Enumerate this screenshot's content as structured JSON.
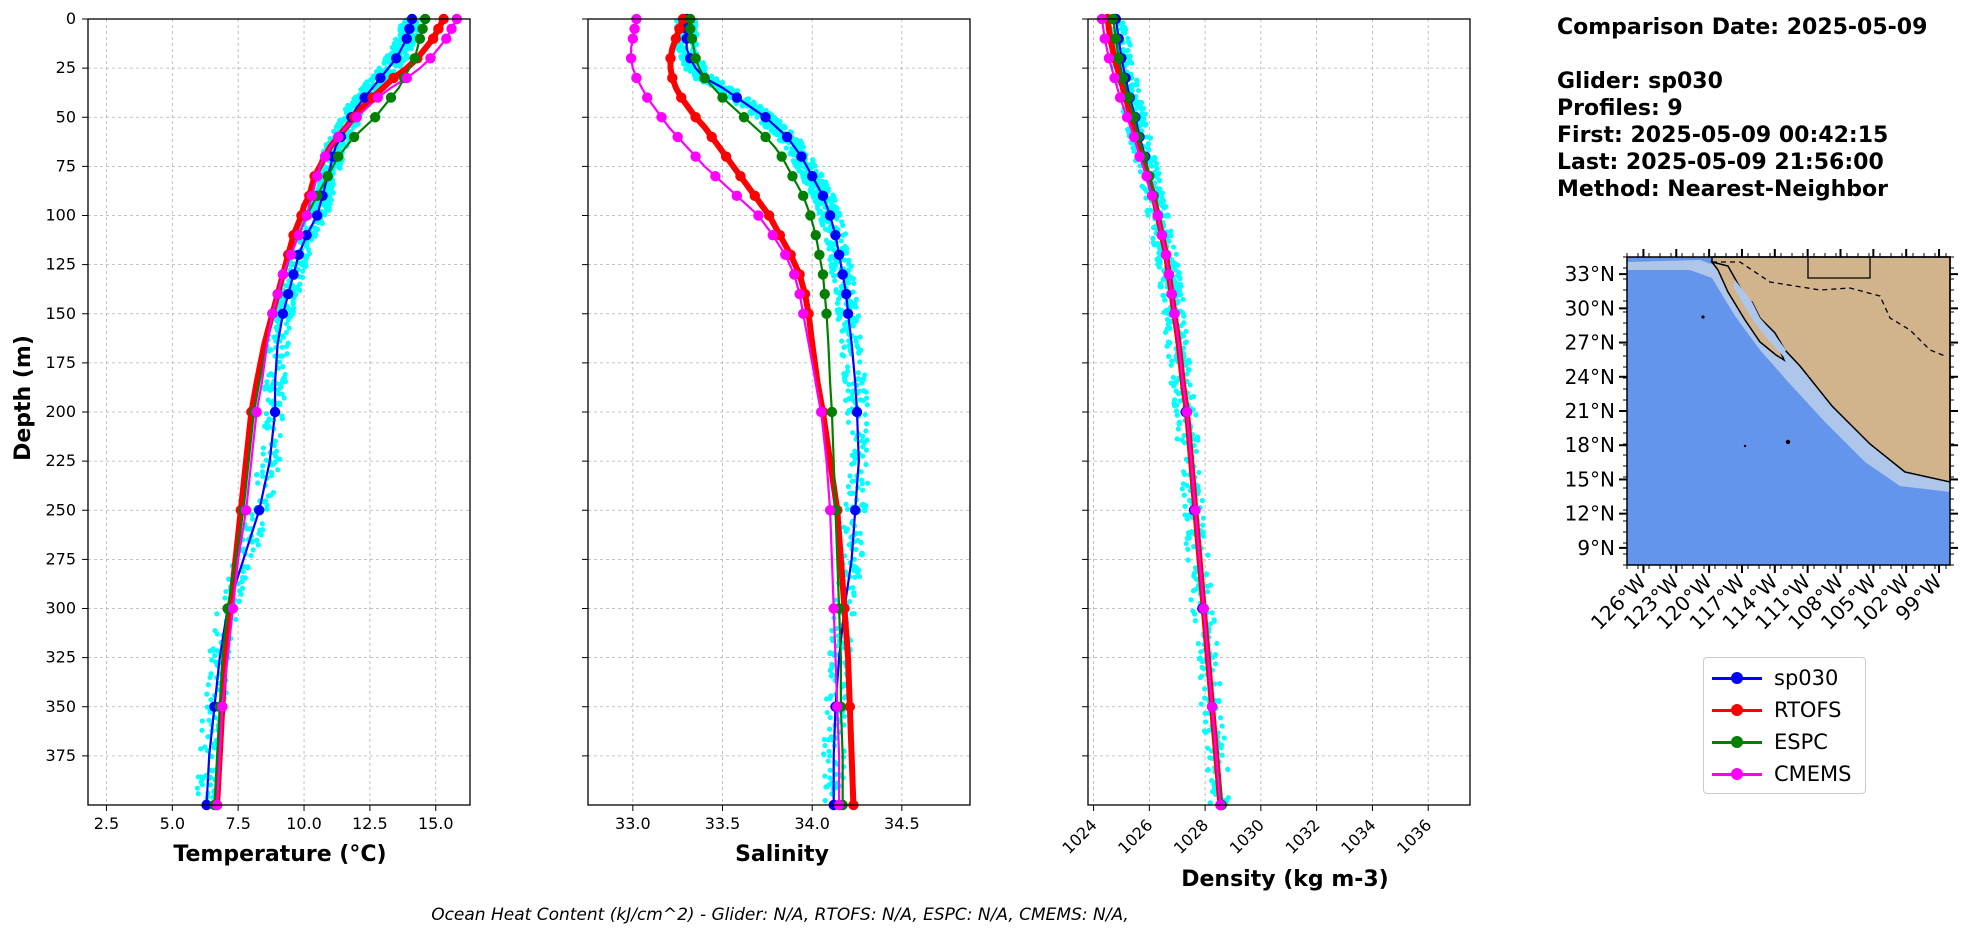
{
  "info": {
    "comparison_date": "Comparison Date: 2025-05-09",
    "glider": "Glider: sp030",
    "profiles": "Profiles: 9",
    "first": "First: 2025-05-09 00:42:15",
    "last": "Last: 2025-05-09 21:56:00",
    "method": "Method: Nearest-Neighbor"
  },
  "footer": "Ocean Heat Content (kJ/cm^2) - Glider: N/A,  RTOFS: N/A,  ESPC: N/A,  CMEMS: N/A,",
  "legend": [
    {
      "label": "sp030",
      "color": "#0000ff"
    },
    {
      "label": "RTOFS",
      "color": "#ff0000"
    },
    {
      "label": "ESPC",
      "color": "#008000"
    },
    {
      "label": "CMEMS",
      "color": "#ff00ff"
    }
  ],
  "colors": {
    "glider_scatter": "#00ffff",
    "ocean": "#6495ed",
    "shelf": "#aec6ea",
    "land": "#d2b48c"
  },
  "chart_data": [
    {
      "type": "line",
      "xlabel": "Temperature (°C)",
      "ylabel": "Depth (m)",
      "xlim": [
        1.8,
        16.3
      ],
      "ylim": [
        400,
        0
      ],
      "xticks": [
        "2.5",
        "5.0",
        "7.5",
        "10.0",
        "12.5",
        "15.0"
      ],
      "yticks": [
        "0",
        "25",
        "50",
        "75",
        "100",
        "125",
        "150",
        "175",
        "200",
        "225",
        "250",
        "275",
        "300",
        "325",
        "350",
        "375"
      ],
      "grid": true,
      "depth": [
        0,
        5,
        10,
        15,
        20,
        25,
        30,
        35,
        40,
        45,
        50,
        55,
        60,
        65,
        70,
        75,
        80,
        85,
        90,
        95,
        100,
        110,
        120,
        130,
        140,
        150,
        165,
        185,
        200,
        225,
        250,
        275,
        300,
        325,
        350,
        375,
        400
      ],
      "series": [
        {
          "name": "sp030",
          "values": [
            14.1,
            14.0,
            13.9,
            13.7,
            13.5,
            13.2,
            12.9,
            12.6,
            12.3,
            12.0,
            11.8,
            11.6,
            11.4,
            11.2,
            11.1,
            11.0,
            10.9,
            10.8,
            10.7,
            10.6,
            10.5,
            10.1,
            9.8,
            9.6,
            9.4,
            9.2,
            9.0,
            8.9,
            8.9,
            8.7,
            8.3,
            7.7,
            7.1,
            6.8,
            6.6,
            6.4,
            6.3
          ]
        },
        {
          "name": "RTOFS",
          "values": [
            15.3,
            15.1,
            14.9,
            14.6,
            14.3,
            13.9,
            13.4,
            13.0,
            12.6,
            12.2,
            11.9,
            11.6,
            11.3,
            11.0,
            10.8,
            10.6,
            10.4,
            10.3,
            10.2,
            10.0,
            9.9,
            9.6,
            9.4,
            9.2,
            9.0,
            8.8,
            8.5,
            8.2,
            8.0,
            7.8,
            7.6,
            7.4,
            7.2,
            7.0,
            6.9,
            6.8,
            6.7
          ]
        },
        {
          "name": "ESPC",
          "values": [
            14.6,
            14.5,
            14.4,
            14.3,
            14.2,
            14.0,
            13.8,
            13.6,
            13.3,
            13.0,
            12.7,
            12.3,
            11.9,
            11.6,
            11.3,
            11.1,
            10.9,
            10.7,
            10.5,
            10.3,
            10.1,
            9.8,
            9.5,
            9.2,
            9.0,
            8.8,
            8.6,
            8.3,
            8.1,
            7.9,
            7.7,
            7.4,
            7.1,
            6.9,
            6.8,
            6.7,
            6.6
          ]
        },
        {
          "name": "CMEMS",
          "values": [
            15.8,
            15.6,
            15.4,
            15.1,
            14.8,
            14.4,
            13.9,
            13.3,
            12.8,
            12.4,
            12.0,
            11.6,
            11.3,
            11.0,
            10.8,
            10.6,
            10.5,
            10.4,
            10.3,
            10.2,
            10.1,
            9.8,
            9.5,
            9.2,
            9.0,
            8.8,
            8.6,
            8.4,
            8.2,
            8.0,
            7.8,
            7.5,
            7.3,
            7.1,
            6.9,
            6.8,
            6.7
          ]
        }
      ]
    },
    {
      "type": "line",
      "xlabel": "Salinity",
      "xlim": [
        32.75,
        34.88
      ],
      "ylim": [
        400,
        0
      ],
      "xticks": [
        "33.0",
        "33.5",
        "34.0",
        "34.5"
      ],
      "grid": true,
      "depth": [
        0,
        5,
        10,
        15,
        20,
        25,
        30,
        35,
        40,
        45,
        50,
        55,
        60,
        65,
        70,
        75,
        80,
        85,
        90,
        95,
        100,
        110,
        120,
        130,
        140,
        150,
        165,
        185,
        200,
        225,
        250,
        275,
        300,
        325,
        350,
        375,
        400
      ],
      "series": [
        {
          "name": "sp030",
          "values": [
            33.3,
            33.3,
            33.3,
            33.3,
            33.32,
            33.35,
            33.4,
            33.5,
            33.58,
            33.66,
            33.74,
            33.8,
            33.86,
            33.9,
            33.94,
            33.97,
            34.0,
            34.03,
            34.06,
            34.08,
            34.1,
            34.13,
            34.15,
            34.17,
            34.19,
            34.2,
            34.22,
            34.24,
            34.25,
            34.26,
            34.24,
            34.22,
            34.18,
            34.15,
            34.13,
            34.12,
            34.12
          ]
        },
        {
          "name": "RTOFS",
          "values": [
            33.28,
            33.26,
            33.24,
            33.22,
            33.21,
            33.21,
            33.22,
            33.24,
            33.27,
            33.31,
            33.35,
            33.4,
            33.44,
            33.48,
            33.52,
            33.56,
            33.6,
            33.64,
            33.68,
            33.72,
            33.76,
            33.82,
            33.88,
            33.93,
            33.96,
            33.98,
            34.0,
            34.03,
            34.06,
            34.1,
            34.14,
            34.16,
            34.18,
            34.2,
            34.21,
            34.22,
            34.23
          ]
        },
        {
          "name": "ESPC",
          "values": [
            33.32,
            33.32,
            33.33,
            33.34,
            33.35,
            33.37,
            33.4,
            33.45,
            33.5,
            33.56,
            33.62,
            33.68,
            33.74,
            33.79,
            33.83,
            33.86,
            33.89,
            33.92,
            33.95,
            33.97,
            33.99,
            34.02,
            34.04,
            34.06,
            34.07,
            34.08,
            34.09,
            34.1,
            34.11,
            34.12,
            34.13,
            34.14,
            34.15,
            34.16,
            34.16,
            34.17,
            34.17
          ]
        },
        {
          "name": "CMEMS",
          "values": [
            33.02,
            33.01,
            33.0,
            32.99,
            32.99,
            33.0,
            33.02,
            33.05,
            33.08,
            33.12,
            33.16,
            33.2,
            33.25,
            33.3,
            33.35,
            33.4,
            33.46,
            33.52,
            33.58,
            33.64,
            33.7,
            33.78,
            33.85,
            33.9,
            33.93,
            33.95,
            33.98,
            34.02,
            34.05,
            34.08,
            34.1,
            34.11,
            34.12,
            34.13,
            34.14,
            34.15,
            34.15
          ]
        }
      ]
    },
    {
      "type": "line",
      "xlabel": "Density (kg m-3)",
      "xlim": [
        1023.8,
        1037.5
      ],
      "ylim": [
        400,
        0
      ],
      "xticks": [
        "1024",
        "1026",
        "1028",
        "1030",
        "1032",
        "1034",
        "1036"
      ],
      "grid": true,
      "depth": [
        0,
        10,
        20,
        30,
        40,
        50,
        60,
        70,
        80,
        90,
        100,
        110,
        120,
        130,
        140,
        150,
        165,
        185,
        200,
        225,
        250,
        275,
        300,
        325,
        350,
        375,
        400
      ],
      "series": [
        {
          "name": "sp030",
          "values": [
            1024.8,
            1024.9,
            1025.0,
            1025.15,
            1025.3,
            1025.5,
            1025.65,
            1025.85,
            1026.0,
            1026.15,
            1026.3,
            1026.45,
            1026.6,
            1026.7,
            1026.8,
            1026.9,
            1027.0,
            1027.15,
            1027.3,
            1027.45,
            1027.6,
            1027.75,
            1027.9,
            1028.1,
            1028.25,
            1028.4,
            1028.55
          ]
        },
        {
          "name": "RTOFS",
          "values": [
            1024.5,
            1024.6,
            1024.75,
            1024.95,
            1025.15,
            1025.35,
            1025.55,
            1025.75,
            1025.95,
            1026.15,
            1026.3,
            1026.45,
            1026.6,
            1026.7,
            1026.8,
            1026.9,
            1027.05,
            1027.2,
            1027.35,
            1027.5,
            1027.65,
            1027.8,
            1027.95,
            1028.1,
            1028.25,
            1028.4,
            1028.55
          ]
        },
        {
          "name": "ESPC",
          "values": [
            1024.7,
            1024.8,
            1024.9,
            1025.05,
            1025.25,
            1025.45,
            1025.6,
            1025.8,
            1026.0,
            1026.15,
            1026.3,
            1026.45,
            1026.6,
            1026.7,
            1026.8,
            1026.9,
            1027.05,
            1027.2,
            1027.35,
            1027.5,
            1027.65,
            1027.8,
            1027.95,
            1028.1,
            1028.25,
            1028.4,
            1028.6
          ]
        },
        {
          "name": "CMEMS",
          "values": [
            1024.3,
            1024.4,
            1024.55,
            1024.75,
            1024.95,
            1025.2,
            1025.45,
            1025.65,
            1025.9,
            1026.1,
            1026.3,
            1026.45,
            1026.6,
            1026.7,
            1026.8,
            1026.9,
            1027.05,
            1027.2,
            1027.35,
            1027.5,
            1027.65,
            1027.8,
            1027.95,
            1028.1,
            1028.25,
            1028.4,
            1028.55
          ]
        }
      ]
    }
  ],
  "map": {
    "lat_ticks": [
      "33°N",
      "30°N",
      "27°N",
      "24°N",
      "21°N",
      "18°N",
      "15°N",
      "12°N",
      "9°N"
    ],
    "lon_ticks": [
      "126°W",
      "123°W",
      "120°W",
      "117°W",
      "114°W",
      "111°W",
      "108°W",
      "105°W",
      "102°W",
      "99°W"
    ],
    "lat_range": [
      7.5,
      34.5
    ],
    "lon_range": [
      -127.5,
      -98.0
    ]
  }
}
